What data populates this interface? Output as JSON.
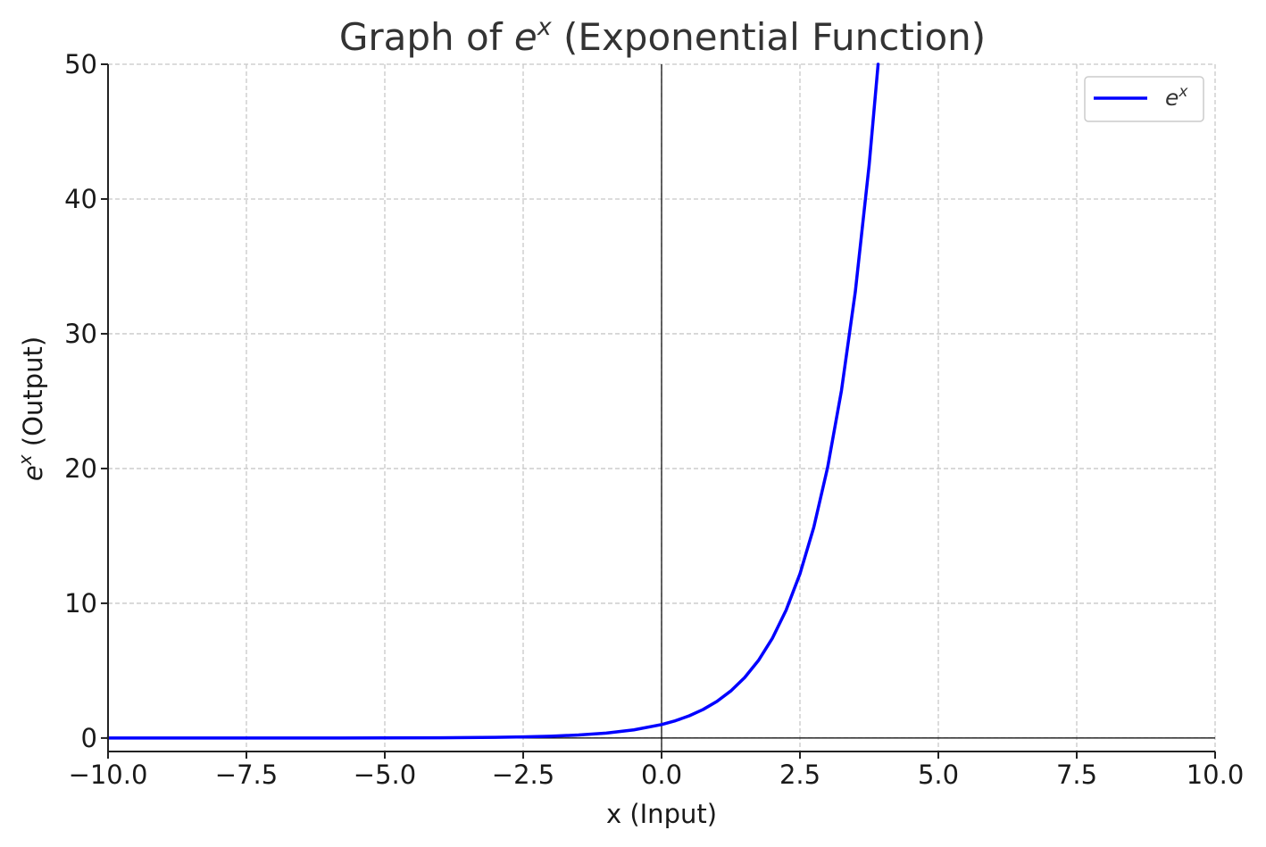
{
  "chart_data": {
    "type": "line",
    "title": {
      "prefix": "Graph of ",
      "base": "e",
      "sup": "x",
      "suffix": " (Exponential Function)"
    },
    "xlabel": "x (Input)",
    "ylabel": {
      "base": "e",
      "sup": "x",
      "suffix": " (Output)"
    },
    "xlim": [
      -10,
      10
    ],
    "ylim": [
      -1,
      50
    ],
    "xticks": [
      -10,
      -7.5,
      -5,
      -2.5,
      0,
      2.5,
      5,
      7.5,
      10
    ],
    "xtick_labels": [
      "−10.0",
      "−7.5",
      "−5.0",
      "−2.5",
      "0.0",
      "2.5",
      "5.0",
      "7.5",
      "10.0"
    ],
    "yticks": [
      0,
      10,
      20,
      30,
      40,
      50
    ],
    "ytick_labels": [
      "0",
      "10",
      "20",
      "30",
      "40",
      "50"
    ],
    "grid": true,
    "reference_lines": {
      "x": 0,
      "y": 0
    },
    "legend": {
      "position": "top-right"
    },
    "series": [
      {
        "name": {
          "base": "e",
          "sup": "x"
        },
        "color": "#0000ff",
        "x": [
          -10,
          -7.5,
          -5,
          -4,
          -3,
          -2.5,
          -2,
          -1.5,
          -1,
          -0.5,
          0,
          0.25,
          0.5,
          0.75,
          1,
          1.25,
          1.5,
          1.75,
          2,
          2.25,
          2.5,
          2.75,
          3,
          3.25,
          3.5,
          3.75,
          3.912
        ],
        "y": [
          5e-05,
          0.00055,
          0.0067,
          0.018,
          0.05,
          0.082,
          0.135,
          0.223,
          0.368,
          0.607,
          1,
          1.284,
          1.649,
          2.117,
          2.718,
          3.49,
          4.482,
          5.755,
          7.389,
          9.488,
          12.182,
          15.643,
          20.086,
          25.79,
          33.115,
          42.521,
          50
        ]
      }
    ]
  }
}
